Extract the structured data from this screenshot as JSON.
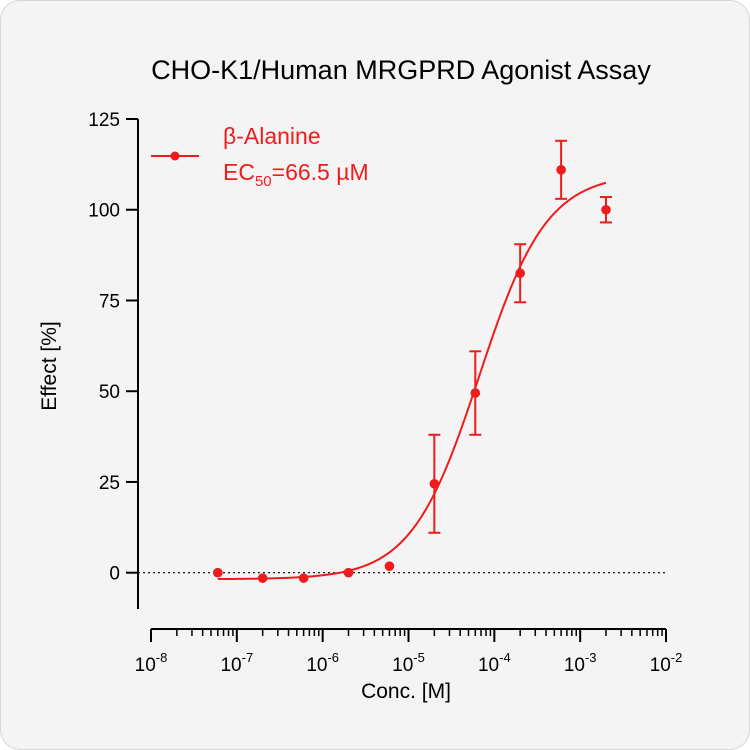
{
  "chart_data": {
    "type": "scatter",
    "title": "CHO-K1/Human MRGPRD Agonist Assay",
    "xlabel": "Conc. [M]",
    "ylabel": "Effect  [%]",
    "x_scale": "log",
    "xlim": [
      1e-08,
      0.01
    ],
    "ylim": [
      -10,
      125
    ],
    "yticks": [
      0,
      25,
      50,
      75,
      100,
      125
    ],
    "x_tick_labels": [
      {
        "base": "10",
        "exp": "-8"
      },
      {
        "base": "10",
        "exp": "-7"
      },
      {
        "base": "10",
        "exp": "-6"
      },
      {
        "base": "10",
        "exp": "-5"
      },
      {
        "base": "10",
        "exp": "-4"
      },
      {
        "base": "10",
        "exp": "-3"
      },
      {
        "base": "10",
        "exp": "-2"
      }
    ],
    "baseline": 0,
    "grid": false,
    "legend_position": "top-left",
    "color": "#ee1c1c",
    "series": [
      {
        "name": "β-Alanine",
        "ec50_label": {
          "prefix": "EC",
          "sub": "50",
          "suffix": "=66.5 µM"
        },
        "x": [
          6e-08,
          2e-07,
          6e-07,
          2e-06,
          6e-06,
          2e-05,
          6e-05,
          0.0002,
          0.0006,
          0.002
        ],
        "y": [
          0,
          -1.5,
          -1.5,
          0,
          1.8,
          24.5,
          49.5,
          82.5,
          111,
          100
        ],
        "yerr": [
          0,
          0,
          0,
          0,
          0,
          13.5,
          11.5,
          8,
          8,
          3.5
        ],
        "fit": {
          "bottom": -1.8,
          "top": 110,
          "ec50": 6.65e-05,
          "hill": 1.1,
          "x_range": [
            6e-08,
            0.002
          ]
        }
      }
    ]
  }
}
